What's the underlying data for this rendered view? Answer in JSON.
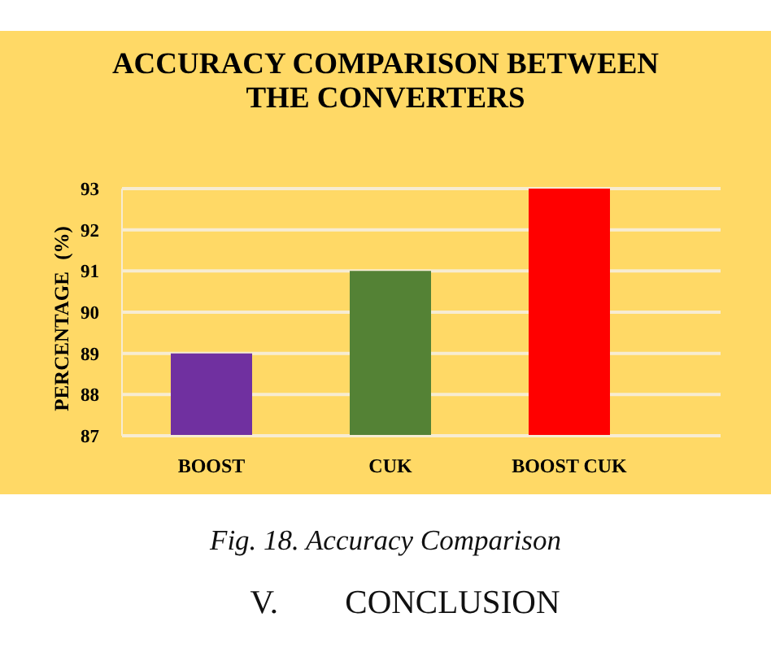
{
  "chart_data": {
    "type": "bar",
    "title": "ACCURACY COMPARISON BETWEEN THE CONVERTERS",
    "ylabel": "PERCENTAGE (%)",
    "categories": [
      "BOOST",
      "CUK",
      "BOOST CUK"
    ],
    "values": [
      89,
      91,
      93
    ],
    "colors": [
      "#7030a0",
      "#548235",
      "#ff0000"
    ],
    "ylim": [
      87,
      93
    ],
    "yticks": [
      87,
      88,
      89,
      90,
      91,
      92,
      93
    ],
    "grid": "y",
    "annotations": [
      "Fig. 18. Accuracy Comparison",
      "V. CONCLUSION"
    ]
  }
}
